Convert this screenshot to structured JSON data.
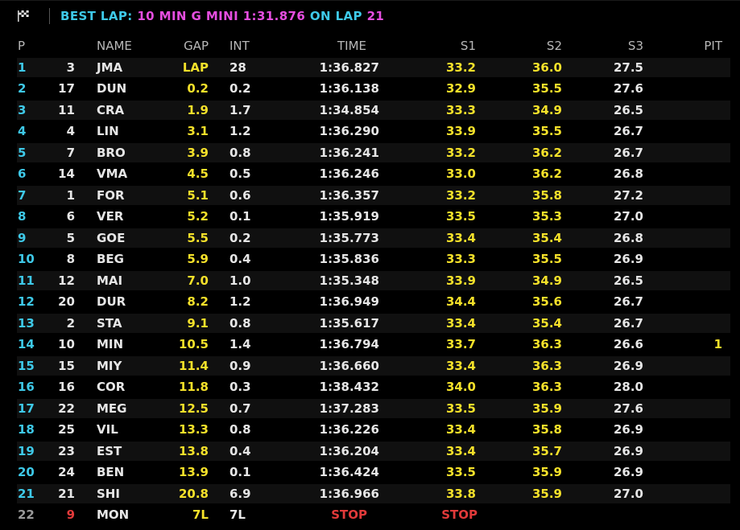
{
  "header": {
    "flag_icon": "checkered-flag-icon",
    "best_lap_label": "BEST LAP:",
    "best_lap_driver": "10 MIN G MINI 1:31.876",
    "best_lap_on": "ON LAP",
    "best_lap_number": "21"
  },
  "columns": {
    "pos": "P",
    "name": "NAME",
    "gap": "GAP",
    "int": "INT",
    "time": "TIME",
    "s1": "S1",
    "s2": "S2",
    "s3": "S3",
    "pit": "PIT"
  },
  "colors": {
    "background": "#000000",
    "accent_cyan": "#3ec9e8",
    "accent_magenta": "#e64ee0",
    "sector_yellow": "#f5e12a",
    "stop_red": "#e23a3a"
  },
  "rows": [
    {
      "pos": "1",
      "num": "3",
      "name": "JMA",
      "gap": "LAP",
      "int": "28",
      "time": "1:36.827",
      "s1": "33.2",
      "s2": "36.0",
      "s3": "27.5",
      "pit": ""
    },
    {
      "pos": "2",
      "num": "17",
      "name": "DUN",
      "gap": "0.2",
      "int": "0.2",
      "time": "1:36.138",
      "s1": "32.9",
      "s2": "35.5",
      "s3": "27.6",
      "pit": ""
    },
    {
      "pos": "3",
      "num": "11",
      "name": "CRA",
      "gap": "1.9",
      "int": "1.7",
      "time": "1:34.854",
      "s1": "33.3",
      "s2": "34.9",
      "s3": "26.5",
      "pit": ""
    },
    {
      "pos": "4",
      "num": "4",
      "name": "LIN",
      "gap": "3.1",
      "int": "1.2",
      "time": "1:36.290",
      "s1": "33.9",
      "s2": "35.5",
      "s3": "26.7",
      "pit": ""
    },
    {
      "pos": "5",
      "num": "7",
      "name": "BRO",
      "gap": "3.9",
      "int": "0.8",
      "time": "1:36.241",
      "s1": "33.2",
      "s2": "36.2",
      "s3": "26.7",
      "pit": ""
    },
    {
      "pos": "6",
      "num": "14",
      "name": "VMA",
      "gap": "4.5",
      "int": "0.5",
      "time": "1:36.246",
      "s1": "33.0",
      "s2": "36.2",
      "s3": "26.8",
      "pit": ""
    },
    {
      "pos": "7",
      "num": "1",
      "name": "FOR",
      "gap": "5.1",
      "int": "0.6",
      "time": "1:36.357",
      "s1": "33.2",
      "s2": "35.8",
      "s3": "27.2",
      "pit": ""
    },
    {
      "pos": "8",
      "num": "6",
      "name": "VER",
      "gap": "5.2",
      "int": "0.1",
      "time": "1:35.919",
      "s1": "33.5",
      "s2": "35.3",
      "s3": "27.0",
      "pit": ""
    },
    {
      "pos": "9",
      "num": "5",
      "name": "GOE",
      "gap": "5.5",
      "int": "0.2",
      "time": "1:35.773",
      "s1": "33.4",
      "s2": "35.4",
      "s3": "26.8",
      "pit": ""
    },
    {
      "pos": "10",
      "num": "8",
      "name": "BEG",
      "gap": "5.9",
      "int": "0.4",
      "time": "1:35.836",
      "s1": "33.3",
      "s2": "35.5",
      "s3": "26.9",
      "pit": ""
    },
    {
      "pos": "11",
      "num": "12",
      "name": "MAI",
      "gap": "7.0",
      "int": "1.0",
      "time": "1:35.348",
      "s1": "33.9",
      "s2": "34.9",
      "s3": "26.5",
      "pit": ""
    },
    {
      "pos": "12",
      "num": "20",
      "name": "DUR",
      "gap": "8.2",
      "int": "1.2",
      "time": "1:36.949",
      "s1": "34.4",
      "s2": "35.6",
      "s3": "26.7",
      "pit": ""
    },
    {
      "pos": "13",
      "num": "2",
      "name": "STA",
      "gap": "9.1",
      "int": "0.8",
      "time": "1:35.617",
      "s1": "33.4",
      "s2": "35.4",
      "s3": "26.7",
      "pit": ""
    },
    {
      "pos": "14",
      "num": "10",
      "name": "MIN",
      "gap": "10.5",
      "int": "1.4",
      "time": "1:36.794",
      "s1": "33.7",
      "s2": "36.3",
      "s3": "26.6",
      "pit": "1"
    },
    {
      "pos": "15",
      "num": "15",
      "name": "MIY",
      "gap": "11.4",
      "int": "0.9",
      "time": "1:36.660",
      "s1": "33.4",
      "s2": "36.3",
      "s3": "26.9",
      "pit": ""
    },
    {
      "pos": "16",
      "num": "16",
      "name": "COR",
      "gap": "11.8",
      "int": "0.3",
      "time": "1:38.432",
      "s1": "34.0",
      "s2": "36.3",
      "s3": "28.0",
      "pit": ""
    },
    {
      "pos": "17",
      "num": "22",
      "name": "MEG",
      "gap": "12.5",
      "int": "0.7",
      "time": "1:37.283",
      "s1": "33.5",
      "s2": "35.9",
      "s3": "27.6",
      "pit": ""
    },
    {
      "pos": "18",
      "num": "25",
      "name": "VIL",
      "gap": "13.3",
      "int": "0.8",
      "time": "1:36.226",
      "s1": "33.4",
      "s2": "35.8",
      "s3": "26.9",
      "pit": ""
    },
    {
      "pos": "19",
      "num": "23",
      "name": "EST",
      "gap": "13.8",
      "int": "0.4",
      "time": "1:36.204",
      "s1": "33.4",
      "s2": "35.7",
      "s3": "26.9",
      "pit": ""
    },
    {
      "pos": "20",
      "num": "24",
      "name": "BEN",
      "gap": "13.9",
      "int": "0.1",
      "time": "1:36.424",
      "s1": "33.5",
      "s2": "35.9",
      "s3": "26.9",
      "pit": ""
    },
    {
      "pos": "21",
      "num": "21",
      "name": "SHI",
      "gap": "20.8",
      "int": "6.9",
      "time": "1:36.966",
      "s1": "33.8",
      "s2": "35.9",
      "s3": "27.0",
      "pit": ""
    },
    {
      "pos": "22",
      "num": "9",
      "name": "MON",
      "gap": "7L",
      "int": "7L",
      "time": "STOP",
      "s1": "STOP",
      "s2": "",
      "s3": "",
      "pit": "",
      "status": "out"
    }
  ]
}
